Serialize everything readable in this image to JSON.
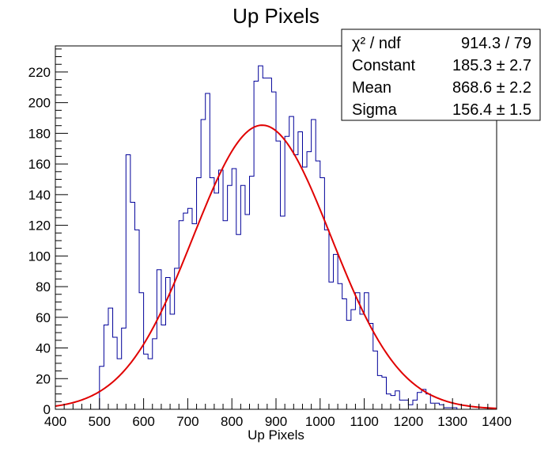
{
  "chart_data": {
    "type": "histogram",
    "title": "Up Pixels",
    "xlabel": "Up Pixels",
    "ylabel": "",
    "xlim": [
      400,
      1400
    ],
    "ylim": [
      0,
      237
    ],
    "x_ticks": [
      400,
      500,
      600,
      700,
      800,
      900,
      1000,
      1100,
      1200,
      1300,
      1400
    ],
    "y_ticks": [
      0,
      20,
      40,
      60,
      80,
      100,
      120,
      140,
      160,
      180,
      200,
      220
    ],
    "bin_width": 10,
    "bins_start": 500,
    "series": [
      {
        "values": [
          28,
          55,
          66,
          47,
          33,
          53,
          166,
          135,
          117,
          76,
          36,
          33,
          46,
          91,
          55,
          86,
          62,
          92,
          123,
          128,
          131,
          121,
          151,
          189,
          206,
          151,
          141,
          156,
          123,
          146,
          157,
          114,
          146,
          127,
          152,
          214,
          224,
          216,
          216,
          207,
          175,
          126,
          178,
          191,
          166,
          181,
          158,
          168,
          189,
          162,
          151,
          117,
          83,
          101,
          82,
          72,
          58,
          65,
          76,
          62,
          76,
          56,
          38,
          22,
          21,
          10,
          9,
          12,
          6,
          6,
          3,
          6,
          11,
          13,
          10,
          4,
          4,
          3,
          1,
          1,
          1
        ]
      }
    ],
    "fit": {
      "type": "gaussian",
      "constant": 185.3,
      "mean": 868.6,
      "sigma": 156.4,
      "color": "#e00000"
    },
    "histogram_color": "#000099"
  },
  "stats": {
    "rows": [
      {
        "label": "χ² / ndf",
        "value": "914.3 / 79"
      },
      {
        "label": "Constant",
        "value": "185.3 ± 2.7"
      },
      {
        "label": "Mean",
        "value": "868.6 ± 2.2"
      },
      {
        "label": "Sigma",
        "value": "156.4 ± 1.5"
      }
    ]
  }
}
